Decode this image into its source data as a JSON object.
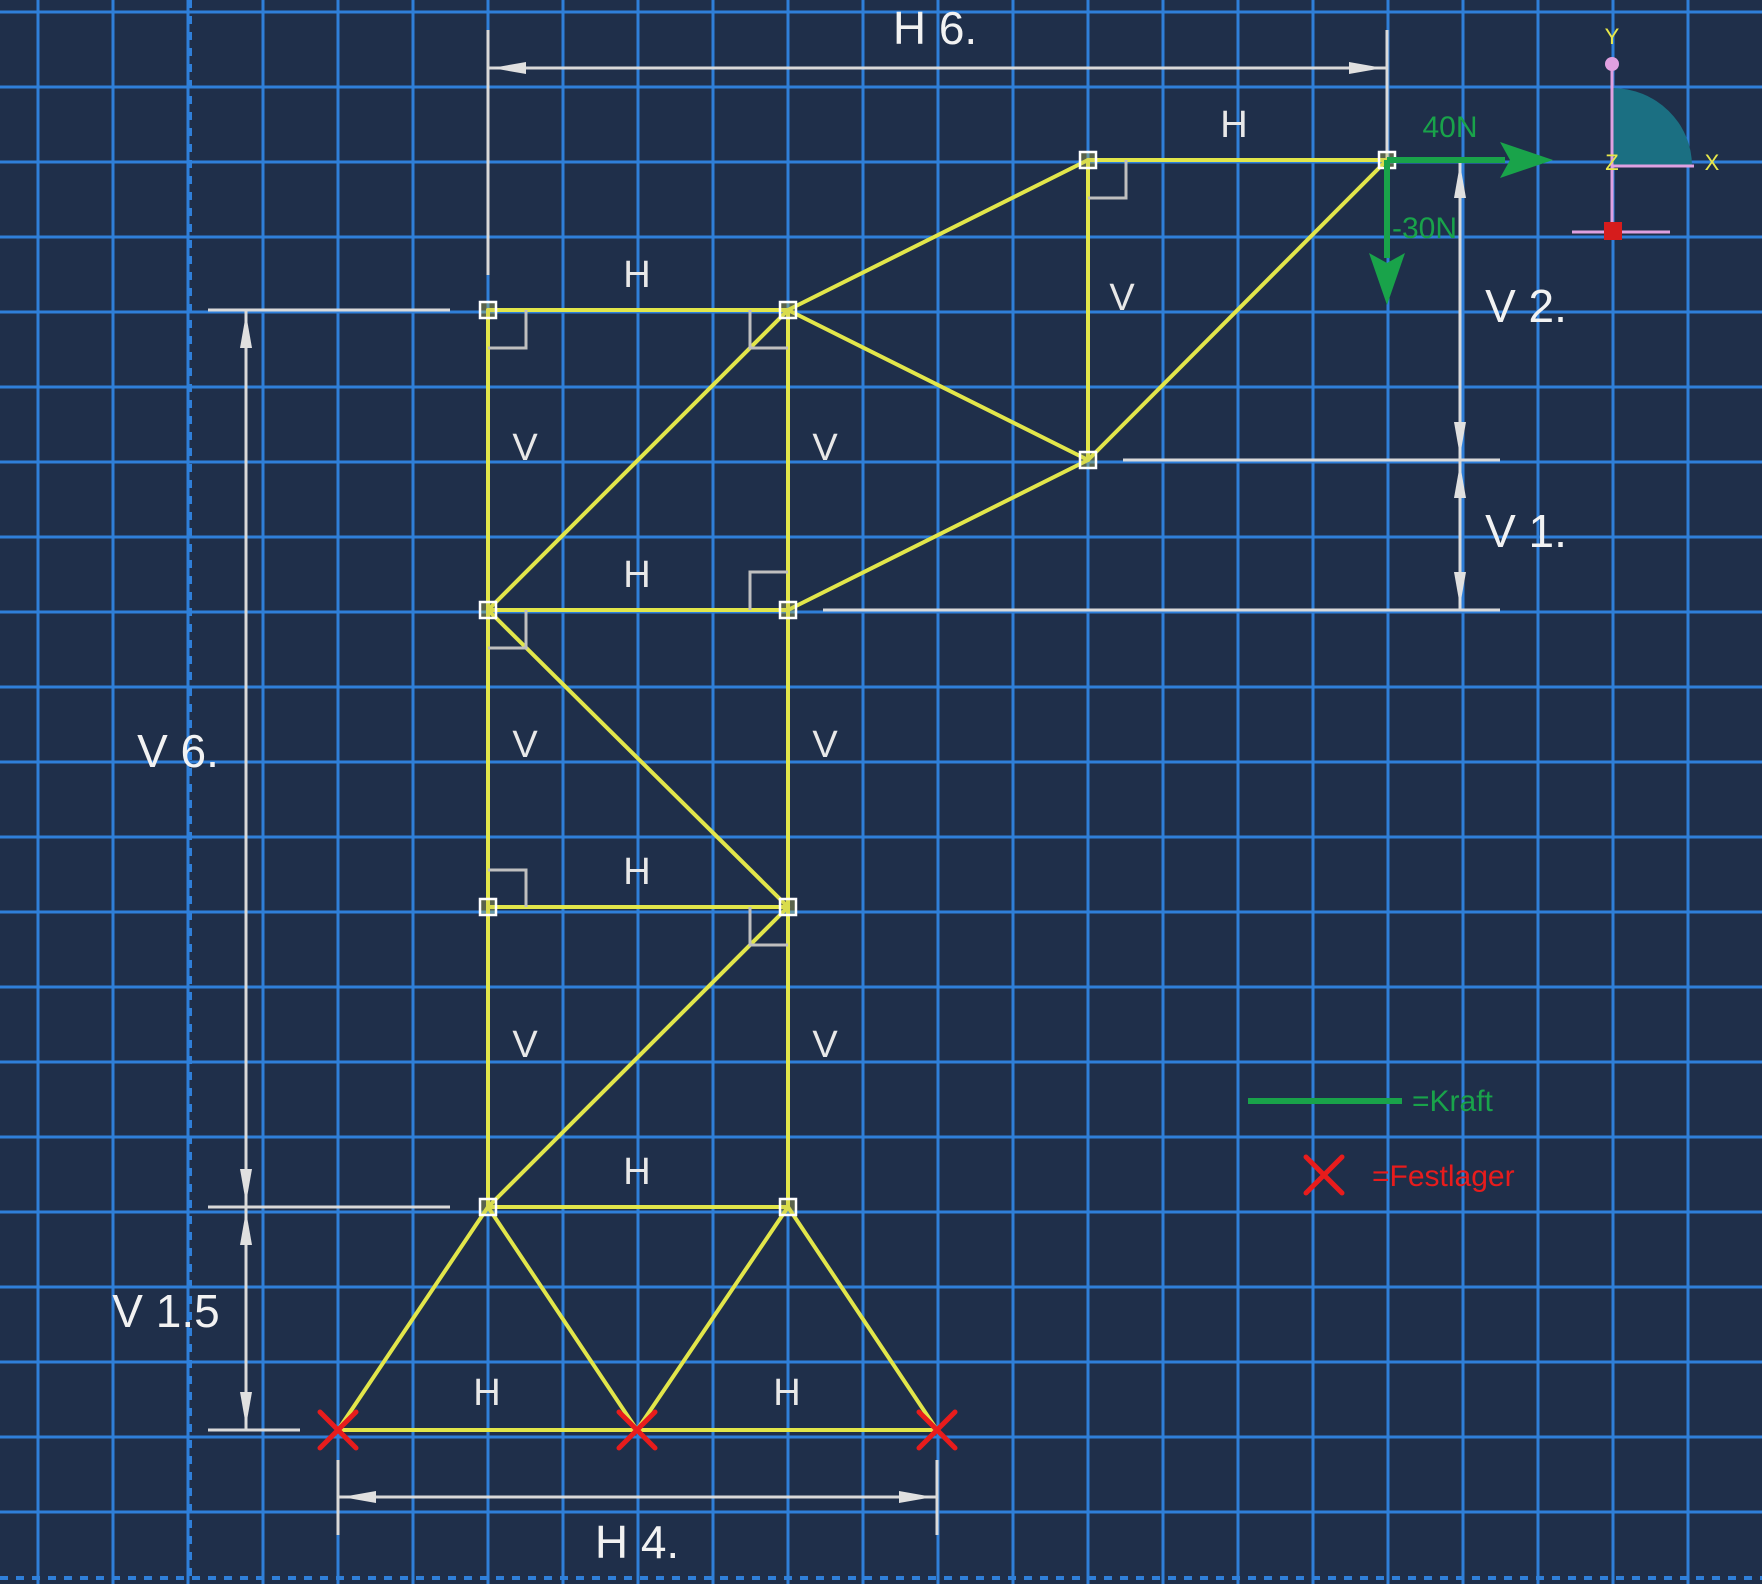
{
  "colors": {
    "background": "#1f2f4a",
    "grid": "#2f7fd9",
    "member": "#e2e64a",
    "dimension": "#d9d9d9",
    "force": "#19a34a",
    "support": "#e81c1c",
    "triad_fill": "#1b6f82",
    "triad_axis": "#e0a0e0",
    "node": "#ffffff"
  },
  "dimensions": {
    "top_width": "H 6.",
    "bottom_width": "H 4.",
    "left_height": "V 6.",
    "left_base_height": "V 1.5",
    "right_upper": "V 2.",
    "right_lower": "V 1."
  },
  "constraints": {
    "h_label": "H",
    "v_label": "V"
  },
  "loads": {
    "fx": "40N",
    "fy": "-30N"
  },
  "legend": {
    "force": "=Kraft",
    "support": "=Festlager"
  },
  "triad": {
    "x": "X",
    "y": "Y",
    "z": "Z"
  },
  "icons": {
    "support": "red-x-icon",
    "node": "square-node-icon",
    "right_angle": "perpendicular-marker-icon",
    "arrow": "dimension-arrow-icon"
  }
}
